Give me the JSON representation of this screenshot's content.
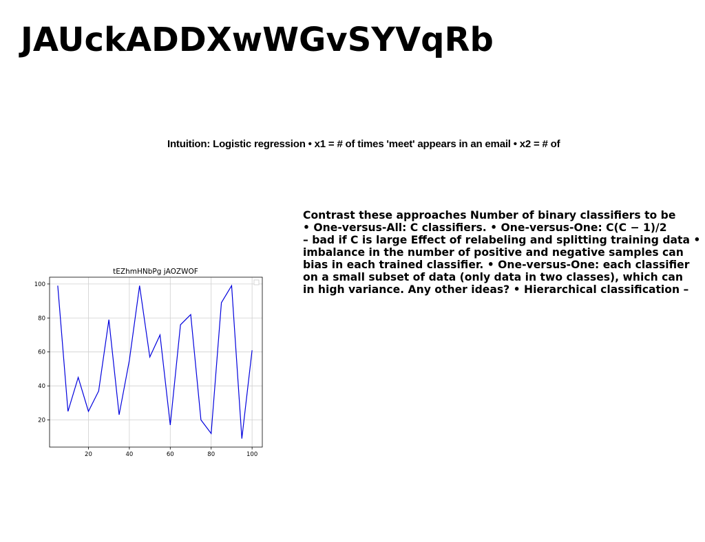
{
  "slide": {
    "title": "JAUckADDXwWGvSYVqRb",
    "intuition": "Intuition: Logistic regression • x1 = # of times 'meet' appears in an email • x2 = # of",
    "contrast_lines": [
      "Contrast these approaches Number of binary classifiers to be",
      "• One-versus-All: C classifiers. • One-versus-One: C(C − 1)/2",
      "– bad if C is large Effect of relabeling and splitting training data •",
      "imbalance in the number of positive and negative samples can",
      "bias in each trained classifier. • One-versus-One: each classifier",
      "on a small subset of data (only data in two classes), which can",
      "in high variance. Any other ideas? • Hierarchical classification –"
    ]
  },
  "chart_data": {
    "type": "line",
    "title": "tEZhmHNbPg jAOZWOF",
    "xlabel": "",
    "ylabel": "",
    "xlim": [
      1,
      105
    ],
    "ylim": [
      4,
      104
    ],
    "x_ticks": [
      20,
      40,
      60,
      80,
      100
    ],
    "y_ticks": [
      20,
      40,
      60,
      80,
      100
    ],
    "grid": true,
    "legend": "top-right",
    "series": [
      {
        "color": "#0000dd",
        "x": [
          5,
          10,
          15,
          20,
          25,
          30,
          35,
          40,
          45,
          50,
          55,
          60,
          65,
          70,
          75,
          80,
          85,
          90,
          95,
          100
        ],
        "values": [
          99,
          25,
          45,
          25,
          37,
          79,
          23,
          55,
          99,
          57,
          70,
          17,
          76,
          82,
          20,
          12,
          89,
          99,
          9,
          61
        ]
      }
    ]
  }
}
